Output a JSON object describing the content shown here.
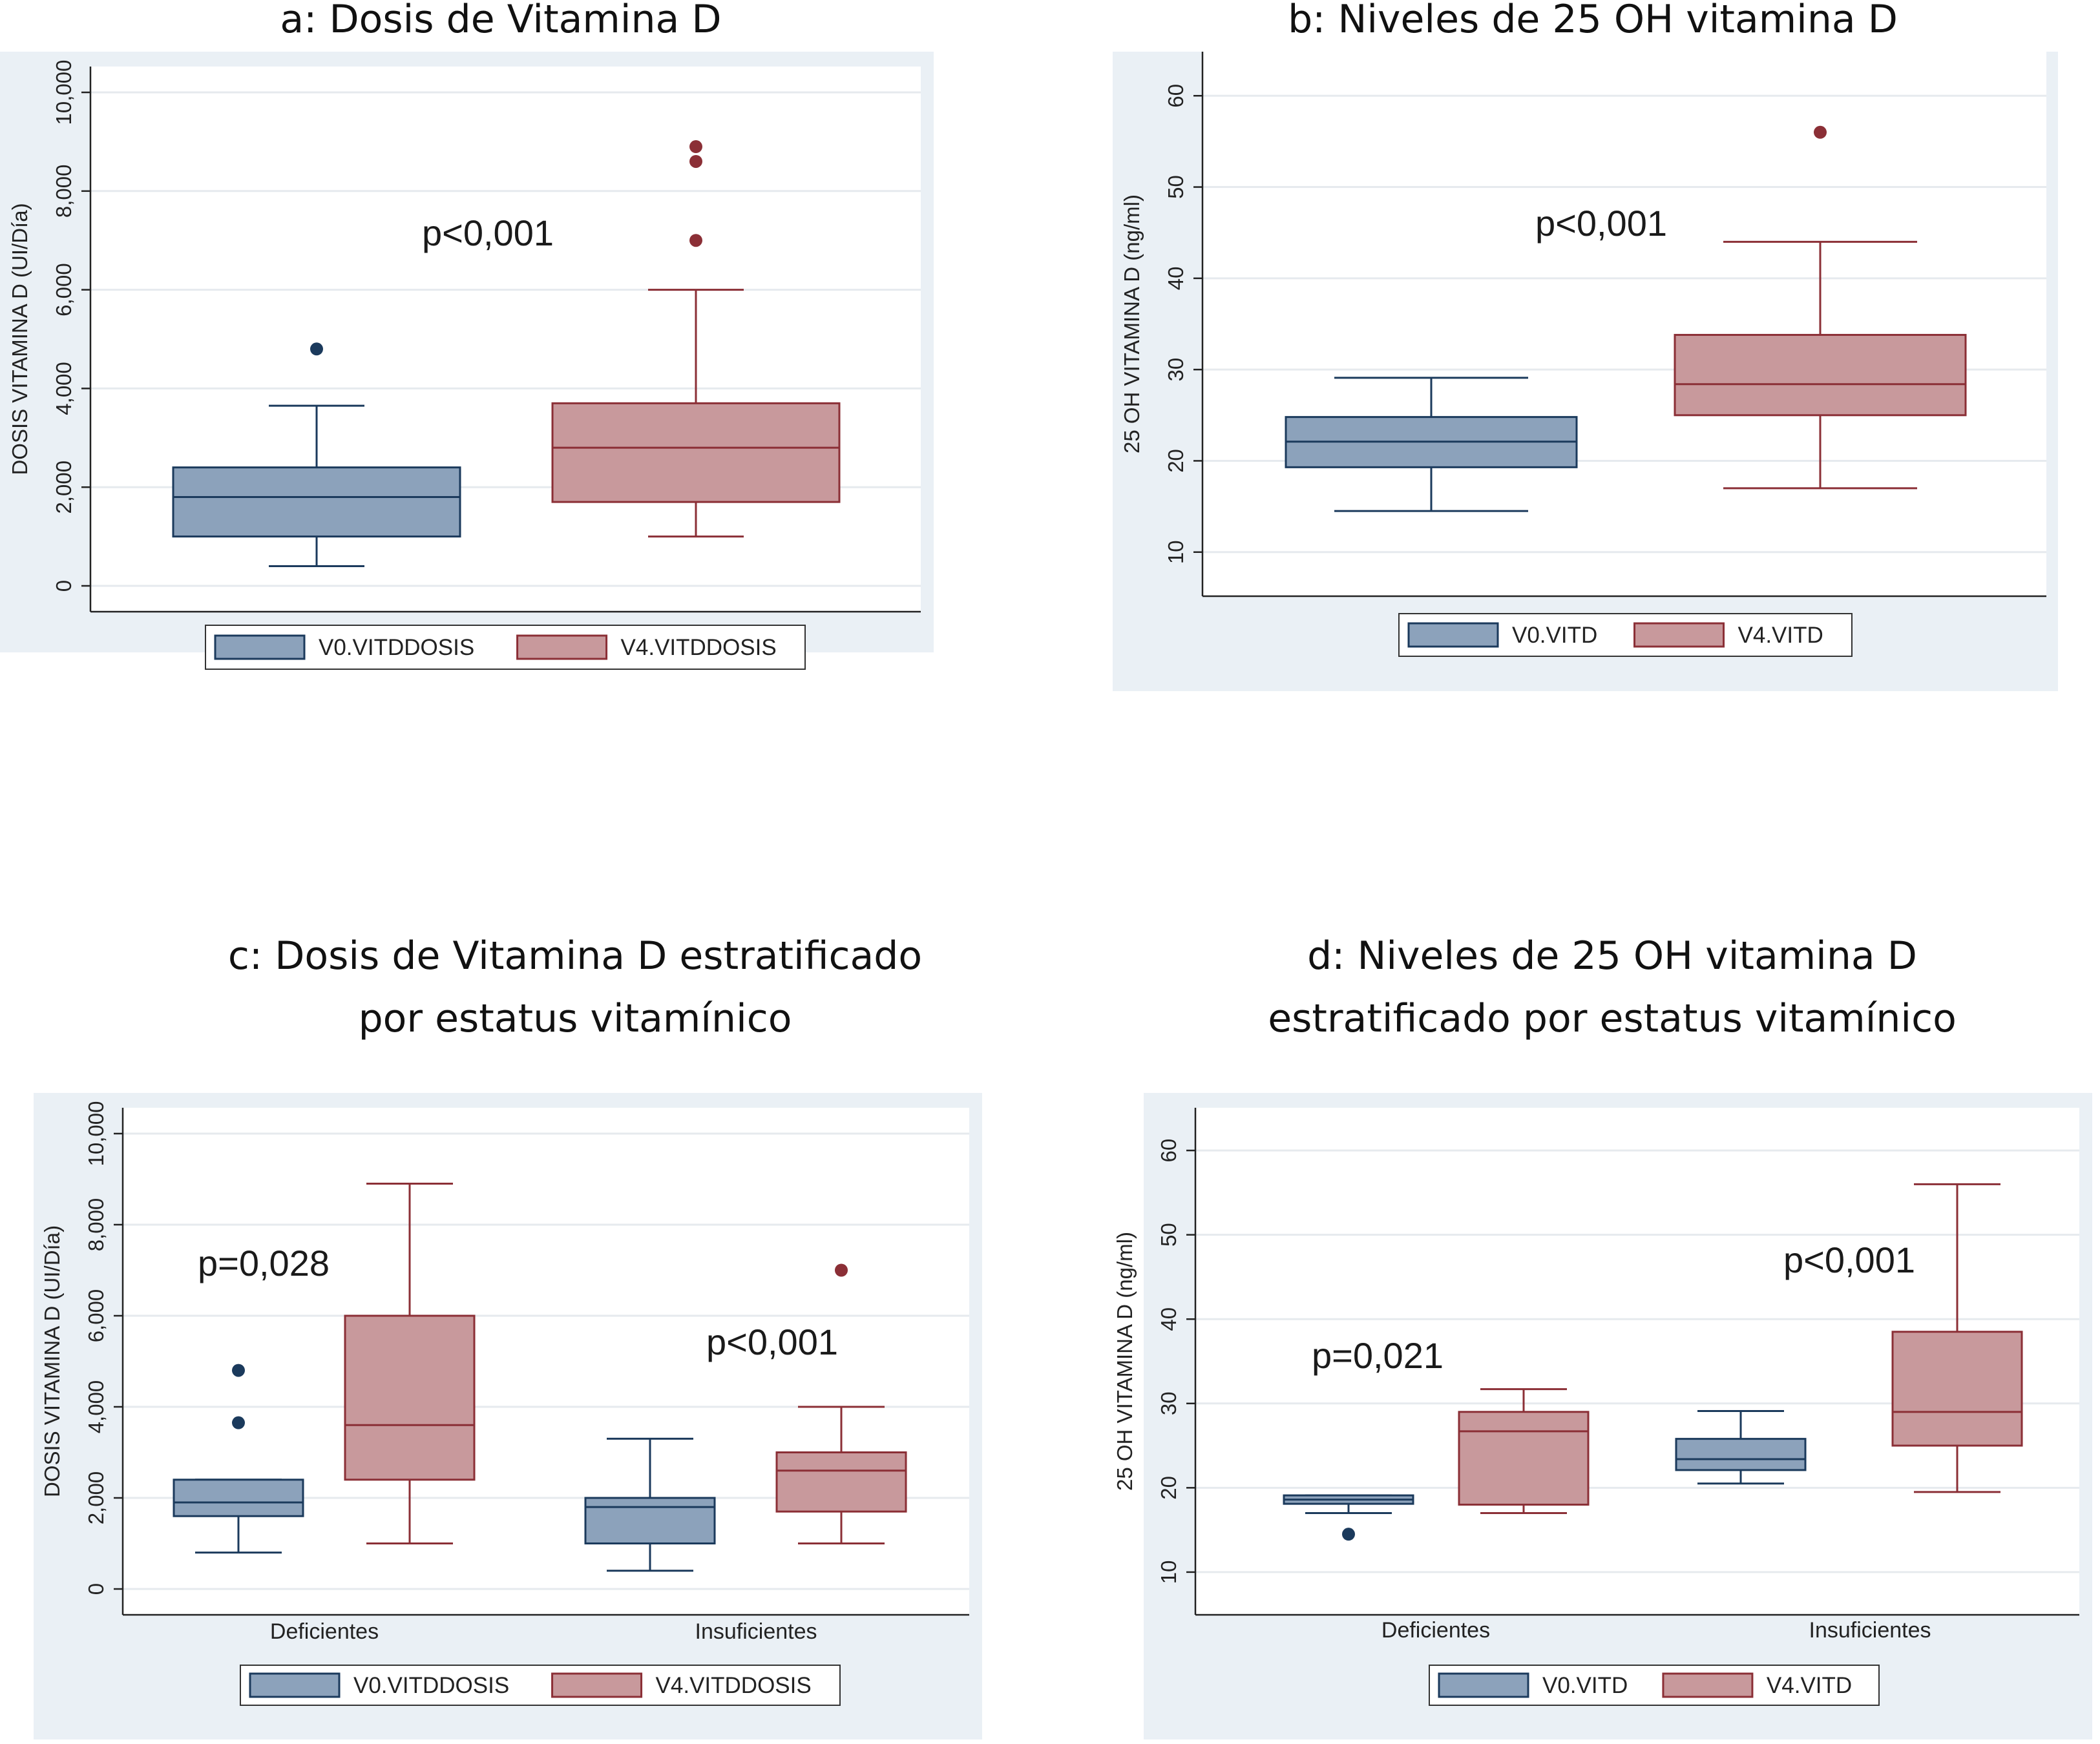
{
  "colors": {
    "v0_fill": "#8ca2bb",
    "v0_line": "#1b3a5c",
    "v4_fill": "#c8999c",
    "v4_line": "#8b2f36",
    "panel_bg": "#eaf0f5",
    "grid": "#e6eaee"
  },
  "chart_data": [
    {
      "id": "a",
      "type": "box",
      "title": "a: Dosis de Vitamina D",
      "ylabel": "DOSIS VITAMINA D (UI/Día)",
      "ylim": [
        0,
        10000
      ],
      "yticks": [
        0,
        2000,
        4000,
        6000,
        8000,
        10000
      ],
      "ytick_labels": [
        "0",
        "2,000",
        "4,000",
        "6,000",
        "8,000",
        "10,000"
      ],
      "categories": [],
      "series": [
        {
          "name": "V0.VITDDOSIS",
          "boxes": [
            {
              "min": 400,
              "q1": 1000,
              "median": 1800,
              "q3": 2400,
              "max": 3650,
              "outliers": [
                4800
              ]
            }
          ]
        },
        {
          "name": "V4.VITDDOSIS",
          "boxes": [
            {
              "min": 1000,
              "q1": 1700,
              "median": 2800,
              "q3": 3700,
              "max": 6000,
              "outliers": [
                7000,
                8600,
                8900
              ]
            }
          ]
        }
      ],
      "annotations": [
        {
          "text": "p<0,001",
          "group": 0
        }
      ],
      "legend": "bottom",
      "grid": true
    },
    {
      "id": "b",
      "type": "box",
      "title": "b: Niveles de 25 OH vitamina D",
      "ylabel": "25 OH VITAMINA D (ng/ml)",
      "ylim": [
        8,
        62
      ],
      "yticks": [
        10,
        20,
        30,
        40,
        50,
        60
      ],
      "ytick_labels": [
        "10",
        "20",
        "30",
        "40",
        "50",
        "60"
      ],
      "categories": [],
      "series": [
        {
          "name": "V0.VITD",
          "boxes": [
            {
              "min": 14.5,
              "q1": 19.3,
              "median": 22.1,
              "q3": 24.8,
              "max": 29.1,
              "outliers": []
            }
          ]
        },
        {
          "name": "V4.VITD",
          "boxes": [
            {
              "min": 17,
              "q1": 25,
              "median": 28.4,
              "q3": 33.8,
              "max": 44,
              "outliers": [
                56
              ]
            }
          ]
        }
      ],
      "annotations": [
        {
          "text": "p<0,001",
          "group": 0
        }
      ],
      "legend": "bottom",
      "grid": true
    },
    {
      "id": "c",
      "type": "box",
      "title": "c: Dosis de Vitamina D estratificado por estatus vitamínico",
      "title_lines": [
        "c: Dosis de Vitamina D estratificado",
        "por estatus vitamínico"
      ],
      "ylabel": "DOSIS VITAMINA D (UI/Día)",
      "ylim": [
        0,
        10000
      ],
      "yticks": [
        0,
        2000,
        4000,
        6000,
        8000,
        10000
      ],
      "ytick_labels": [
        "0",
        "2,000",
        "4,000",
        "6,000",
        "8,000",
        "10,000"
      ],
      "categories": [
        "Deficientes",
        "Insuficientes"
      ],
      "series": [
        {
          "name": "V0.VITDDOSIS",
          "boxes": [
            {
              "min": 800,
              "q1": 1600,
              "median": 1900,
              "q3": 2400,
              "max": 2400,
              "outliers": [
                3650,
                4800
              ]
            },
            {
              "min": 400,
              "q1": 1000,
              "median": 1800,
              "q3": 2000,
              "max": 3300,
              "outliers": []
            }
          ]
        },
        {
          "name": "V4.VITDDOSIS",
          "boxes": [
            {
              "min": 1000,
              "q1": 2400,
              "median": 3600,
              "q3": 6000,
              "max": 8900,
              "outliers": []
            },
            {
              "min": 1000,
              "q1": 1700,
              "median": 2600,
              "q3": 3000,
              "max": 4000,
              "outliers": [
                7000
              ]
            }
          ]
        }
      ],
      "annotations": [
        {
          "text": "p=0,028",
          "group": 0
        },
        {
          "text": "p<0,001",
          "group": 1
        }
      ],
      "legend": "bottom",
      "grid": true
    },
    {
      "id": "d",
      "type": "box",
      "title": "d: Niveles de 25 OH vitamina D estratificado por estatus vitamínico",
      "title_lines": [
        "d: Niveles de 25 OH vitamina D",
        "estratificado por estatus vitamínico"
      ],
      "ylabel": "25 OH VITAMINA D (ng/ml)",
      "ylim": [
        8,
        62
      ],
      "yticks": [
        10,
        20,
        30,
        40,
        50,
        60
      ],
      "ytick_labels": [
        "10",
        "20",
        "30",
        "40",
        "50",
        "60"
      ],
      "categories": [
        "Deficientes",
        "Insuficientes"
      ],
      "series": [
        {
          "name": "V0.VITD",
          "boxes": [
            {
              "min": 17,
              "q1": 18.1,
              "median": 18.6,
              "q3": 19.1,
              "max": 19.1,
              "outliers": [
                14.5
              ]
            },
            {
              "min": 20.5,
              "q1": 22.1,
              "median": 23.4,
              "q3": 25.8,
              "max": 29.1,
              "outliers": []
            }
          ]
        },
        {
          "name": "V4.VITD",
          "boxes": [
            {
              "min": 17,
              "q1": 18,
              "median": 26.7,
              "q3": 29,
              "max": 31.7,
              "outliers": []
            },
            {
              "min": 19.5,
              "q1": 25,
              "median": 29,
              "q3": 38.5,
              "max": 56,
              "outliers": []
            }
          ]
        }
      ],
      "annotations": [
        {
          "text": "p=0,021",
          "group": 0
        },
        {
          "text": "p<0,001",
          "group": 1
        }
      ],
      "legend": "bottom",
      "grid": true
    }
  ]
}
